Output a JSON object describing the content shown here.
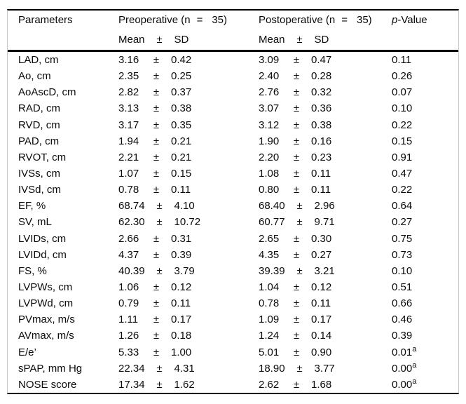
{
  "table": {
    "plus_minus": "±",
    "header": {
      "parameters": "Parameters",
      "preoperative": {
        "label": "Preoperative (n",
        "eq": "=",
        "n": "35)"
      },
      "postoperative": {
        "label": "Postoperative (n",
        "eq": "=",
        "n": "35)"
      },
      "pvalue": {
        "italic": "p",
        "rest": "-Value"
      },
      "mean": "Mean",
      "pm": "±",
      "sd": "SD"
    },
    "rows": [
      {
        "param": "LAD, cm",
        "pre_mean": "3.16",
        "pre_sd": "0.42",
        "post_mean": "3.09",
        "post_sd": "0.47",
        "p": "0.11"
      },
      {
        "param": "Ao, cm",
        "pre_mean": "2.35",
        "pre_sd": "0.25",
        "post_mean": "2.40",
        "post_sd": "0.28",
        "p": "0.26"
      },
      {
        "param": "AoAscD, cm",
        "pre_mean": "2.82",
        "pre_sd": "0.37",
        "post_mean": "2.76",
        "post_sd": "0.32",
        "p": "0.07"
      },
      {
        "param": "RAD, cm",
        "pre_mean": "3.13",
        "pre_sd": "0.38",
        "post_mean": "3.07",
        "post_sd": "0.36",
        "p": "0.10"
      },
      {
        "param": "RVD, cm",
        "pre_mean": "3.17",
        "pre_sd": "0.35",
        "post_mean": "3.12",
        "post_sd": "0.38",
        "p": "0.22"
      },
      {
        "param": "PAD, cm",
        "pre_mean": "1.94",
        "pre_sd": "0.21",
        "post_mean": "1.90",
        "post_sd": "0.16",
        "p": "0.15"
      },
      {
        "param": "RVOT, cm",
        "pre_mean": "2.21",
        "pre_sd": "0.21",
        "post_mean": "2.20",
        "post_sd": "0.23",
        "p": "0.91"
      },
      {
        "param": "IVSs, cm",
        "pre_mean": "1.07",
        "pre_sd": "0.15",
        "post_mean": "1.08",
        "post_sd": "0.11",
        "p": "0.47"
      },
      {
        "param": "IVSd, cm",
        "pre_mean": "0.78",
        "pre_sd": "0.11",
        "post_mean": "0.80",
        "post_sd": "0.11",
        "p": "0.22"
      },
      {
        "param": "EF, %",
        "pre_mean": "68.74",
        "pre_sd": "4.10",
        "post_mean": "68.40",
        "post_sd": "2.96",
        "p": "0.64"
      },
      {
        "param": "SV, mL",
        "pre_mean": "62.30",
        "pre_sd": "10.72",
        "post_mean": "60.77",
        "post_sd": "9.71",
        "p": "0.27"
      },
      {
        "param": "LVIDs, cm",
        "pre_mean": "2.66",
        "pre_sd": "0.31",
        "post_mean": "2.65",
        "post_sd": "0.30",
        "p": "0.75"
      },
      {
        "param": "LVIDd, cm",
        "pre_mean": "4.37",
        "pre_sd": "0.39",
        "post_mean": "4.35",
        "post_sd": "0.27",
        "p": "0.73"
      },
      {
        "param": "FS, %",
        "pre_mean": "40.39",
        "pre_sd": "3.79",
        "post_mean": "39.39",
        "post_sd": "3.21",
        "p": "0.10"
      },
      {
        "param": "LVPWs, cm",
        "pre_mean": "1.06",
        "pre_sd": "0.12",
        "post_mean": "1.04",
        "post_sd": "0.12",
        "p": "0.51"
      },
      {
        "param": "LVPWd, cm",
        "pre_mean": "0.79",
        "pre_sd": "0.11",
        "post_mean": "0.78",
        "post_sd": "0.11",
        "p": "0.66"
      },
      {
        "param": "PVmax, m/s",
        "pre_mean": "1.11",
        "pre_sd": "0.17",
        "post_mean": "1.09",
        "post_sd": "0.17",
        "p": "0.46"
      },
      {
        "param": "AVmax, m/s",
        "pre_mean": "1.26",
        "pre_sd": "0.18",
        "post_mean": "1.24",
        "post_sd": "0.14",
        "p": "0.39"
      },
      {
        "param": "E/e’",
        "pre_mean": "5.33",
        "pre_sd": "1.00",
        "post_mean": "5.01",
        "post_sd": "0.90",
        "p": "0.01",
        "p_sup": "a"
      },
      {
        "param": "sPAP, mm Hg",
        "pre_mean": "22.34",
        "pre_sd": "4.31",
        "post_mean": "18.90",
        "post_sd": "3.77",
        "p": "0.00",
        "p_sup": "a"
      },
      {
        "param": "NOSE score",
        "pre_mean": "17.34",
        "pre_sd": "1.62",
        "post_mean": "2.62",
        "post_sd": "1.68",
        "p": "0.00",
        "p_sup": "a"
      }
    ]
  }
}
